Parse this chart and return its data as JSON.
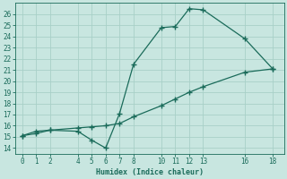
{
  "xlabel": "Humidex (Indice chaleur)",
  "background_color": "#c8e6e0",
  "grid_color": "#a8d0c8",
  "line_color": "#1a6b5a",
  "xlim": [
    -0.5,
    18.8
  ],
  "ylim": [
    13.5,
    27.0
  ],
  "xticks": [
    0,
    1,
    2,
    4,
    5,
    6,
    7,
    8,
    10,
    11,
    12,
    13,
    16,
    18
  ],
  "yticks": [
    14,
    15,
    16,
    17,
    18,
    19,
    20,
    21,
    22,
    23,
    24,
    25,
    26
  ],
  "line1_x": [
    0,
    1,
    2,
    4,
    5,
    6,
    7,
    8,
    10,
    11,
    12,
    13,
    16,
    18
  ],
  "line1_y": [
    15.1,
    15.5,
    15.6,
    15.5,
    14.7,
    14.0,
    17.1,
    21.5,
    24.8,
    24.9,
    26.5,
    26.4,
    23.8,
    21.1
  ],
  "line2_x": [
    0,
    1,
    2,
    4,
    5,
    6,
    7,
    8,
    10,
    11,
    12,
    13,
    16,
    18
  ],
  "line2_y": [
    15.1,
    15.3,
    15.6,
    15.8,
    15.9,
    16.0,
    16.2,
    16.8,
    17.8,
    18.4,
    19.0,
    19.5,
    20.8,
    21.1
  ],
  "marker": "+",
  "markersize": 4,
  "linewidth": 0.9,
  "tick_labelsize": 5.5,
  "xlabel_fontsize": 6.0
}
